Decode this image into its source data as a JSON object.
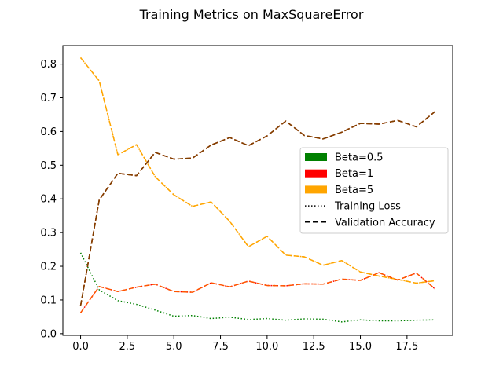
{
  "chart_data": {
    "type": "line",
    "title": "Training Metrics on MaxSquareError",
    "xlabel": "",
    "ylabel": "",
    "xlim": [
      -0.95,
      19.95
    ],
    "ylim": [
      -0.005,
      0.855
    ],
    "xticks": [
      0.0,
      2.5,
      5.0,
      7.5,
      10.0,
      12.5,
      15.0,
      17.5
    ],
    "xtick_labels": [
      "0.0",
      "2.5",
      "5.0",
      "7.5",
      "10.0",
      "12.5",
      "15.0",
      "17.5"
    ],
    "yticks": [
      0.0,
      0.1,
      0.2,
      0.3,
      0.4,
      0.5,
      0.6,
      0.7,
      0.8
    ],
    "ytick_labels": [
      "0.0",
      "0.1",
      "0.2",
      "0.3",
      "0.4",
      "0.5",
      "0.6",
      "0.7",
      "0.8"
    ],
    "grid": false,
    "legend_position": "center-right",
    "x": [
      0,
      1,
      2,
      3,
      4,
      5,
      6,
      7,
      8,
      9,
      10,
      11,
      12,
      13,
      14,
      15,
      16,
      17,
      18,
      19
    ],
    "series": [
      {
        "beta": "Beta=0.5",
        "metric": "Training Loss",
        "color": "#008000",
        "dash": "dotted",
        "values": [
          0.24,
          0.13,
          0.098,
          0.087,
          0.07,
          0.052,
          0.054,
          0.045,
          0.049,
          0.042,
          0.045,
          0.04,
          0.044,
          0.043,
          0.035,
          0.041,
          0.038,
          0.038,
          0.04,
          0.041
        ]
      },
      {
        "beta": "Beta=0.5",
        "metric": "Validation Accuracy",
        "color": "#008000",
        "dash": "dashed",
        "values": [
          0.083,
          0.397,
          0.476,
          0.469,
          0.538,
          0.518,
          0.521,
          0.56,
          0.582,
          0.558,
          0.587,
          0.631,
          0.588,
          0.578,
          0.598,
          0.624,
          0.622,
          0.633,
          0.614,
          0.659
        ]
      },
      {
        "beta": "Beta=1",
        "metric": "Training Loss",
        "color": "#ff0000",
        "dash": "dotted",
        "values": [
          0.062,
          0.14,
          0.125,
          0.138,
          0.147,
          0.125,
          0.123,
          0.151,
          0.139,
          0.156,
          0.143,
          0.142,
          0.148,
          0.147,
          0.162,
          0.158,
          0.181,
          0.159,
          0.18,
          0.133
        ]
      },
      {
        "beta": "Beta=1",
        "metric": "Validation Accuracy",
        "color": "#ff0000",
        "dash": "dashed",
        "values": [
          0.083,
          0.397,
          0.476,
          0.469,
          0.538,
          0.518,
          0.521,
          0.56,
          0.582,
          0.558,
          0.587,
          0.631,
          0.588,
          0.578,
          0.598,
          0.624,
          0.622,
          0.633,
          0.614,
          0.659
        ]
      },
      {
        "beta": "Beta=5",
        "metric": "Training Loss",
        "color": "#ffa500",
        "dash": "dotted",
        "values": [
          0.819,
          0.75,
          0.531,
          0.561,
          0.466,
          0.412,
          0.378,
          0.391,
          0.333,
          0.258,
          0.289,
          0.233,
          0.228,
          0.203,
          0.217,
          0.183,
          0.171,
          0.161,
          0.15,
          0.157
        ]
      },
      {
        "beta": "Beta=5",
        "metric": "Validation Accuracy",
        "color": "#ffa500",
        "dash": "dashed",
        "values": [
          0.819,
          0.75,
          0.531,
          0.561,
          0.466,
          0.412,
          0.378,
          0.391,
          0.333,
          0.258,
          0.289,
          0.233,
          0.228,
          0.203,
          0.217,
          0.183,
          0.171,
          0.161,
          0.15,
          0.157
        ]
      }
    ],
    "overlay": [
      {
        "color": "#804000",
        "dash": "dashed",
        "values": [
          0.083,
          0.397,
          0.476,
          0.469,
          0.538,
          0.518,
          0.521,
          0.56,
          0.582,
          0.558,
          0.587,
          0.631,
          0.588,
          0.578,
          0.598,
          0.624,
          0.622,
          0.633,
          0.614,
          0.659
        ]
      },
      {
        "color": "#ff5500",
        "dash": "dashed",
        "values": [
          0.062,
          0.14,
          0.125,
          0.138,
          0.147,
          0.125,
          0.123,
          0.151,
          0.139,
          0.156,
          0.143,
          0.142,
          0.148,
          0.147,
          0.162,
          0.158,
          0.181,
          0.159,
          0.18,
          0.133
        ]
      }
    ],
    "legend": [
      {
        "label": "Beta=0.5",
        "kind": "patch",
        "color": "#008000"
      },
      {
        "label": "Beta=1",
        "kind": "patch",
        "color": "#ff0000"
      },
      {
        "label": "Beta=5",
        "kind": "patch",
        "color": "#ffa500"
      },
      {
        "label": "Training Loss",
        "kind": "line",
        "color": "#000000",
        "dash": "dotted"
      },
      {
        "label": "Validation Accuracy",
        "kind": "line",
        "color": "#000000",
        "dash": "dashed"
      }
    ]
  }
}
